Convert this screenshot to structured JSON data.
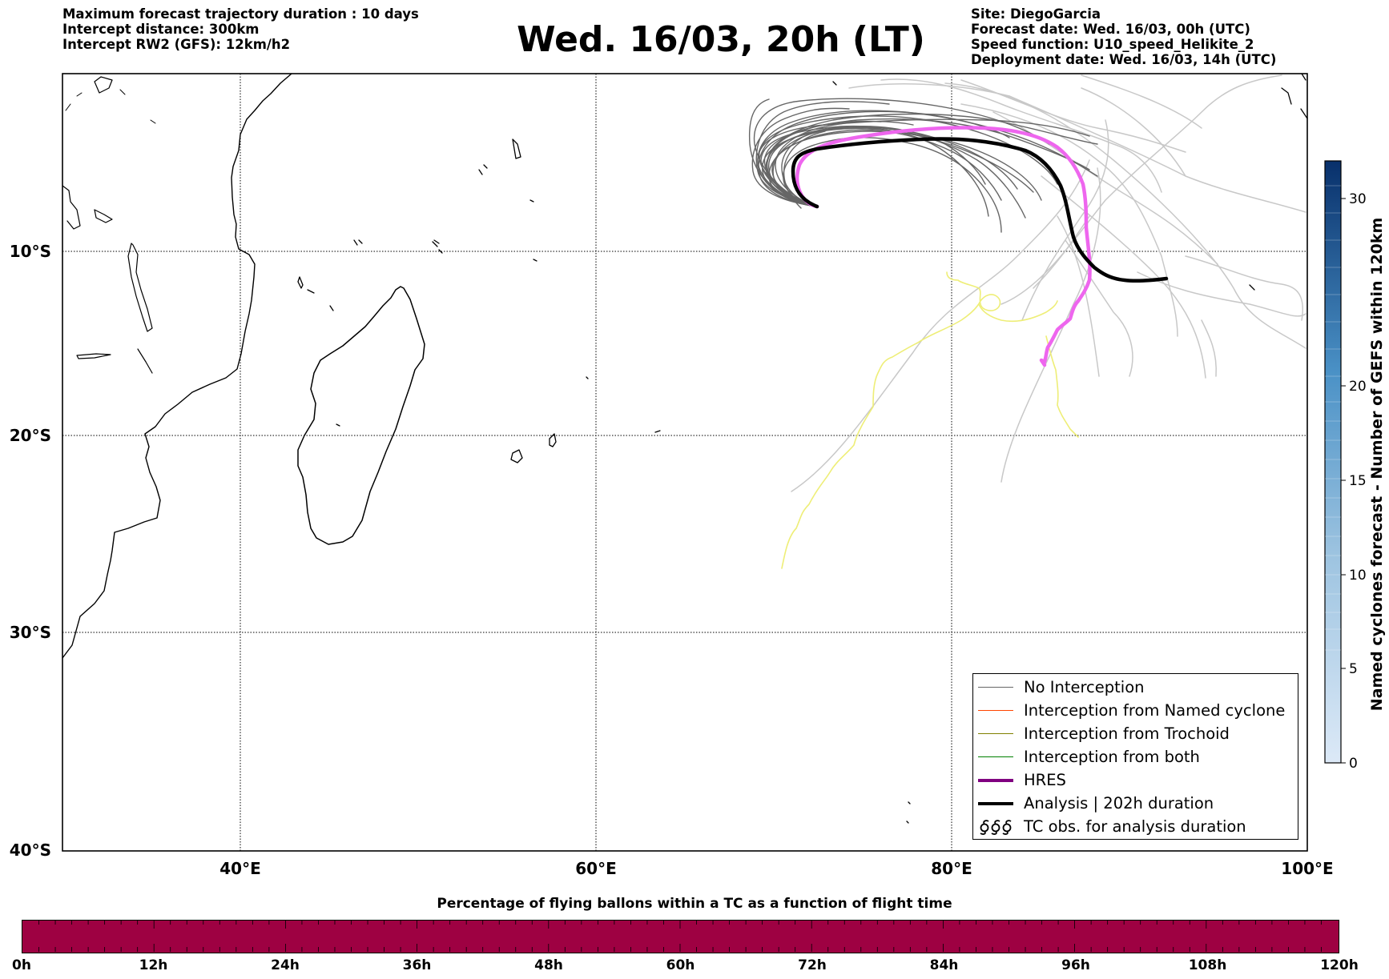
{
  "header_left": [
    "Maximum forecast trajectory duration : 10 days",
    "Intercept distance: 300km",
    "Intercept RW2 (GFS):  12km/h2"
  ],
  "title": "Wed. 16/03, 20h (LT)",
  "header_right": [
    "Site: DiegoGarcia",
    "Forecast date: Wed. 16/03, 00h (UTC)",
    "Speed function: U10_speed_Helikite_2",
    "Deployment date: Wed. 16/03, 14h (UTC)"
  ],
  "map": {
    "lat_labels": [
      "10°S",
      "20°S",
      "30°S",
      "40°S"
    ],
    "lon_labels": [
      "40°E",
      "60°E",
      "80°E",
      "100°E"
    ],
    "lon_range": [
      30,
      100
    ],
    "lat_range": [
      -40,
      -1
    ]
  },
  "colorbar": {
    "title": "Named cyclones forecast - Number of GEFS within 120km",
    "ticks": [
      "0",
      "5",
      "10",
      "15",
      "20",
      "30"
    ],
    "colors": {
      "low": "#dce9f7",
      "high": "#08306b"
    }
  },
  "legend": [
    {
      "label": "No Interception",
      "symbol": "line",
      "color": "#666666"
    },
    {
      "label": "Interception from Named cyclone",
      "symbol": "line",
      "color": "#ff4500"
    },
    {
      "label": "Interception from Trochoid",
      "symbol": "line",
      "color": "#808000"
    },
    {
      "label": "Interception from both",
      "symbol": "line",
      "color": "#008000"
    },
    {
      "label": "HRES",
      "symbol": "thick-line",
      "color": "#800080"
    },
    {
      "label": "Analysis | 202h duration",
      "symbol": "thick-line",
      "color": "#000000"
    },
    {
      "label": "TC obs. for analysis duration",
      "symbol": "cyclone-glyphs",
      "glyphs": "ʛʛʛ"
    }
  ],
  "colors": {
    "hres_track": "#ee66ee",
    "hres_legend": "#800080",
    "analysis_track": "#000000",
    "tc_obs_track": "#eeee77",
    "ensemble_dark": "#666666",
    "ensemble_light": "#c8c8c8",
    "time_bar": "#9e0142"
  },
  "bottom": {
    "title": "Percentage of flying ballons within a TC as a function of flight time",
    "ticks": [
      "0h",
      "12h",
      "24h",
      "36h",
      "48h",
      "60h",
      "72h",
      "84h",
      "96h",
      "108h",
      "120h"
    ],
    "fill_color": "#9e0142"
  }
}
